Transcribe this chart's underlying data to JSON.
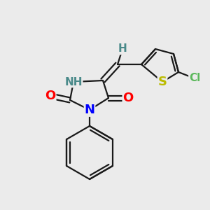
{
  "background_color": "#ebebeb",
  "bond_color": "#1a1a1a",
  "bond_width": 1.6,
  "atom_colors": {
    "N": "#0000ff",
    "O": "#ff0000",
    "S": "#bbbb00",
    "Cl": "#5cb85c",
    "NH": "#4a8a8a",
    "H": "#4a8a8a",
    "C": "#1a1a1a"
  },
  "font_size_atom": 13,
  "font_size_small": 11,
  "fig_width": 3.0,
  "fig_height": 3.0,
  "dpi": 100
}
